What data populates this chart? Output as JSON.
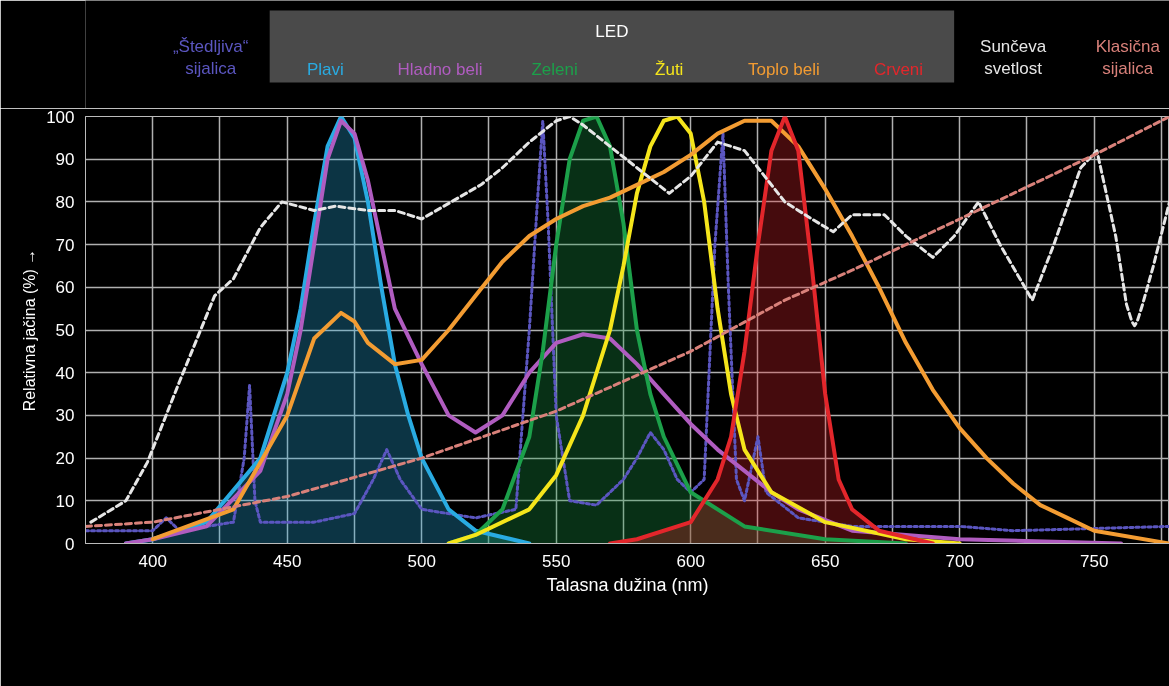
{
  "chart_data": {
    "type": "line",
    "xlabel": "Talasna dužina (nm)",
    "ylabel": "Relativna jačina (%) →",
    "legend_title": "LED",
    "grid": true,
    "xlim": [
      375,
      778
    ],
    "ylim": [
      0,
      100
    ],
    "xticks": [
      400,
      {
        "value": 425,
        "label": null
      },
      450,
      {
        "value": 475,
        "label": null
      },
      500,
      {
        "value": 525,
        "label": null
      },
      550,
      {
        "value": 575,
        "label": null
      },
      600,
      {
        "value": 625,
        "label": null
      },
      650,
      {
        "value": 675,
        "label": null
      },
      700,
      {
        "value": 725,
        "label": null
      },
      750,
      {
        "value": 775,
        "label": null
      }
    ],
    "yticks": [
      0,
      10,
      20,
      30,
      40,
      50,
      60,
      70,
      80,
      90,
      100
    ],
    "series": [
      {
        "name": "„Štedljiva“\nsijalica",
        "line_style": "dotted",
        "color": "#5b56c0",
        "x": [
          375,
          400,
          405,
          410,
          430,
          434,
          436,
          438,
          440,
          460,
          475,
          482,
          487,
          492,
          500,
          520,
          535,
          540,
          543,
          545,
          547,
          550,
          555,
          565,
          575,
          580,
          585,
          590,
          595,
          600,
          605,
          609,
          612,
          614,
          617,
          620,
          625,
          628,
          640,
          660,
          700,
          720,
          778
        ],
        "values": [
          3,
          3,
          6,
          3,
          5,
          20,
          37,
          10,
          5,
          5,
          7,
          15,
          22,
          15,
          8,
          6,
          8,
          50,
          80,
          99,
          75,
          30,
          10,
          9,
          15,
          20,
          26,
          22,
          15,
          12,
          15,
          70,
          96,
          60,
          15,
          10,
          25,
          12,
          6,
          4,
          4,
          3,
          4
        ]
      },
      {
        "name": "Plavi",
        "type": "area",
        "line_style": "solid",
        "color": "#29abe2",
        "x": [
          390,
          400,
          420,
          440,
          450,
          455,
          460,
          465,
          470,
          475,
          480,
          485,
          490,
          495,
          500,
          510,
          520,
          540
        ],
        "values": [
          0,
          1,
          5,
          20,
          40,
          55,
          75,
          93,
          100,
          95,
          80,
          60,
          42,
          30,
          20,
          8,
          3,
          0
        ]
      },
      {
        "name": "Hladno beli",
        "line_style": "solid",
        "color": "#b05cc0",
        "x": [
          390,
          400,
          420,
          440,
          450,
          455,
          460,
          465,
          470,
          475,
          480,
          490,
          500,
          510,
          520,
          530,
          540,
          550,
          560,
          570,
          580,
          590,
          600,
          610,
          620,
          630,
          640,
          660,
          700,
          760
        ],
        "values": [
          0,
          1,
          4,
          17,
          35,
          50,
          70,
          90,
          99,
          96,
          85,
          55,
          42,
          30,
          26,
          30,
          40,
          47,
          49,
          48,
          42,
          35,
          28,
          22,
          17,
          12,
          8,
          3,
          1,
          0
        ]
      },
      {
        "name": "Zeleni",
        "type": "area",
        "line_style": "solid",
        "color": "#1ca04a",
        "x": [
          510,
          520,
          530,
          540,
          545,
          550,
          555,
          560,
          565,
          570,
          575,
          580,
          585,
          590,
          600,
          620,
          650,
          680
        ],
        "values": [
          0,
          2,
          8,
          25,
          45,
          70,
          90,
          99,
          100,
          93,
          75,
          50,
          35,
          25,
          12,
          4,
          1,
          0
        ]
      },
      {
        "name": "Žuti",
        "line_style": "solid",
        "color": "#f5e51b",
        "x": [
          510,
          520,
          540,
          550,
          560,
          570,
          575,
          580,
          585,
          590,
          595,
          600,
          605,
          610,
          615,
          620,
          630,
          650,
          680,
          700
        ],
        "values": [
          0,
          2,
          8,
          16,
          30,
          50,
          65,
          82,
          93,
          99,
          100,
          96,
          80,
          55,
          35,
          22,
          12,
          5,
          1,
          0
        ]
      },
      {
        "name": "Toplo beli",
        "line_style": "solid",
        "color": "#f39c32",
        "x": [
          400,
          430,
          450,
          460,
          470,
          475,
          480,
          490,
          500,
          510,
          520,
          530,
          540,
          550,
          560,
          570,
          580,
          590,
          600,
          610,
          620,
          630,
          640,
          650,
          660,
          670,
          680,
          690,
          700,
          710,
          720,
          730,
          740,
          750,
          778
        ],
        "values": [
          1,
          8,
          30,
          48,
          54,
          52,
          47,
          42,
          43,
          50,
          58,
          66,
          72,
          76,
          79,
          81,
          84,
          87,
          91,
          96,
          99,
          99,
          93,
          83,
          72,
          60,
          47,
          36,
          27,
          20,
          14,
          9,
          6,
          3,
          0
        ]
      },
      {
        "name": "Crveni",
        "type": "area",
        "line_style": "solid",
        "color": "#e3262b",
        "x": [
          570,
          580,
          600,
          610,
          615,
          620,
          625,
          630,
          635,
          640,
          645,
          650,
          655,
          660,
          670,
          690
        ],
        "values": [
          0,
          1,
          5,
          15,
          25,
          45,
          70,
          92,
          100,
          92,
          65,
          35,
          15,
          8,
          3,
          0
        ]
      },
      {
        "name": "Sunčeva\nsvetlost",
        "line_style": "dashed",
        "color": "#e6e6e6",
        "x": [
          377,
          390,
          398,
          410,
          423,
          430,
          440,
          448,
          460,
          468,
          480,
          490,
          500,
          511,
          522,
          530,
          540,
          550,
          555,
          560,
          570,
          580,
          592,
          600,
          610,
          620,
          635,
          645,
          653,
          660,
          672,
          680,
          690,
          698,
          707,
          715,
          727,
          735,
          745,
          751,
          758,
          762,
          764,
          765,
          766,
          768,
          772,
          778
        ],
        "values": [
          5,
          10,
          19,
          38,
          58,
          62,
          74,
          80,
          78,
          79,
          78,
          78,
          76,
          80,
          84,
          88,
          94,
          99,
          100,
          98,
          93,
          88,
          82,
          86,
          94,
          92,
          80,
          76,
          73,
          77,
          77,
          72,
          67,
          72,
          80,
          70,
          57,
          70,
          88,
          92,
          72,
          56,
          52,
          51,
          52,
          56,
          65,
          80
        ]
      },
      {
        "name": "Klasična\nsijalica",
        "line_style": "dashed",
        "color": "#d9817a",
        "x": [
          375,
          400,
          450,
          500,
          550,
          600,
          635,
          660,
          700,
          750,
          778
        ],
        "values": [
          4,
          5,
          11,
          20,
          31,
          45,
          57,
          64,
          76,
          91,
          100
        ]
      }
    ]
  }
}
